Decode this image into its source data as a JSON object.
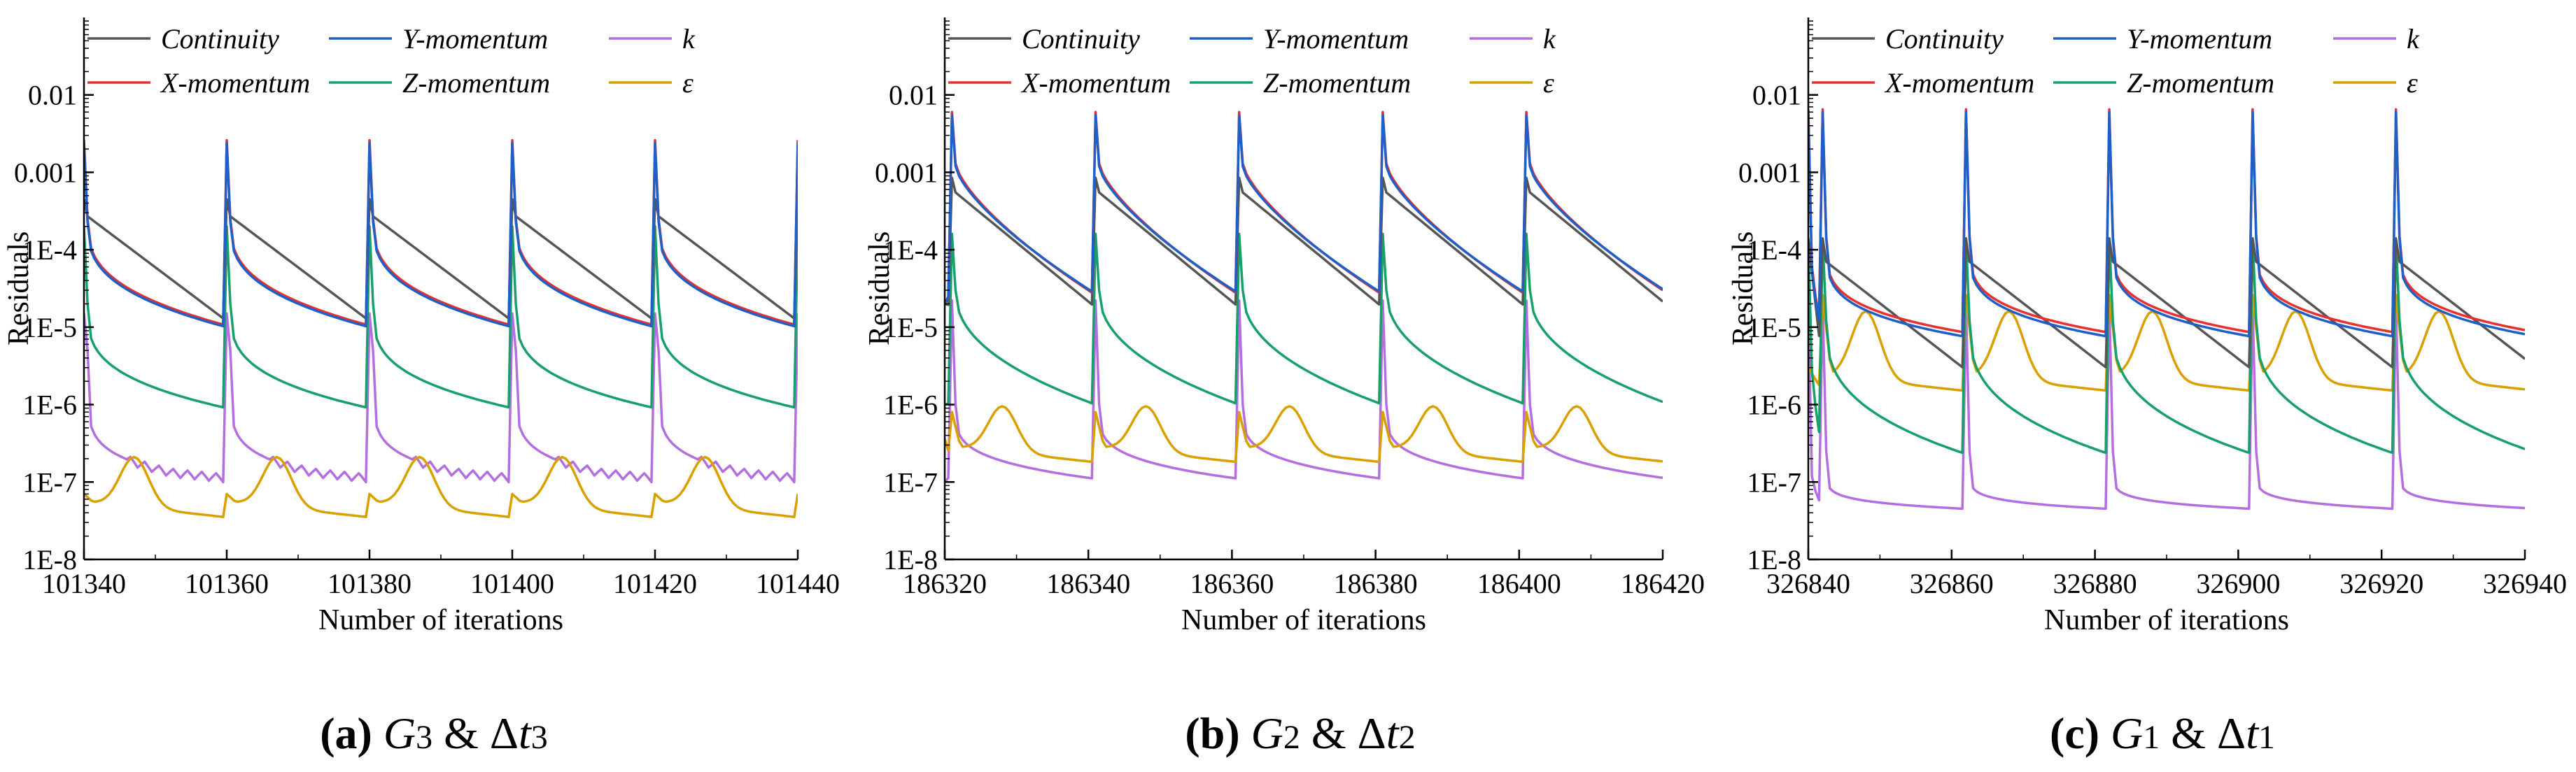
{
  "chart_data": [
    {
      "type": "line",
      "panel": "a",
      "caption": {
        "letter": "(a)",
        "grid": "G",
        "grid_sub": "3",
        "amp": "&",
        "delta": "Δ",
        "step": "t",
        "step_sub": "3"
      },
      "xlabel": "Number of iterations",
      "ylabel": "Residuals",
      "xlim": [
        101340,
        101440
      ],
      "ylim": [
        1e-08,
        0.1
      ],
      "xticks": [
        101340,
        101360,
        101380,
        101400,
        101420,
        101440
      ],
      "yticks": [
        {
          "value": 1e-08,
          "label": "1E-8"
        },
        {
          "value": 1e-07,
          "label": "1E-7"
        },
        {
          "value": 1e-06,
          "label": "1E-6"
        },
        {
          "value": 1e-05,
          "label": "1E-5"
        },
        {
          "value": 0.0001,
          "label": "1E-4"
        },
        {
          "value": 0.001,
          "label": "0.001"
        },
        {
          "value": 0.01,
          "label": "0.01"
        }
      ],
      "grid": false,
      "legend_position": "top",
      "cycle": {
        "start": 101340,
        "period": 20
      },
      "series": [
        {
          "name": "Continuity",
          "color": "#555555",
          "start": 0.00024,
          "end": 1.2e-05,
          "peak": 0.00045,
          "after_peak": 0.00027,
          "decay_shape": 1.0
        },
        {
          "name": "X-momentum",
          "color": "#e8312e",
          "start": 0.0008,
          "end": 1.05e-05,
          "peak": 0.0026,
          "after_peak": 0.00025,
          "decay_shape": 0.35
        },
        {
          "name": "Y-momentum",
          "color": "#1f5fc8",
          "start": 0.00075,
          "end": 1e-05,
          "peak": 0.0024,
          "after_peak": 0.00023,
          "decay_shape": 0.35
        },
        {
          "name": "Z-momentum",
          "color": "#17a06a",
          "start": 8e-05,
          "end": 9e-07,
          "peak": 0.0002,
          "after_peak": 2e-05,
          "decay_shape": 0.3
        },
        {
          "name": "k",
          "color": "#b56ee0",
          "start": 5e-06,
          "end": 1e-07,
          "peak": 1.5e-05,
          "after_peak": 5e-06,
          "plateau": 1.6e-07,
          "decay_shape": 0.15,
          "oscillation": 0.12
        },
        {
          "name": "ε",
          "color": "#d9a000",
          "bumpy": true,
          "base": 3.5e-08,
          "hump": 2.1e-07,
          "hump_pos": 0.35
        }
      ]
    },
    {
      "type": "line",
      "panel": "b",
      "caption": {
        "letter": "(b)",
        "grid": "G",
        "grid_sub": "2",
        "amp": "&",
        "delta": "Δ",
        "step": "t",
        "step_sub": "2"
      },
      "xlabel": "Number of iterations",
      "ylabel": "Residuals",
      "xlim": [
        186320,
        186420
      ],
      "ylim": [
        1e-08,
        0.1
      ],
      "xticks": [
        186320,
        186340,
        186360,
        186380,
        186400,
        186420
      ],
      "yticks": [
        {
          "value": 1e-08,
          "label": "1E-8"
        },
        {
          "value": 1e-07,
          "label": "1E-7"
        },
        {
          "value": 1e-06,
          "label": "1E-6"
        },
        {
          "value": 1e-05,
          "label": "1E-5"
        },
        {
          "value": 0.0001,
          "label": "1E-4"
        },
        {
          "value": 0.001,
          "label": "0.001"
        },
        {
          "value": 0.01,
          "label": "0.01"
        }
      ],
      "grid": false,
      "legend_position": "top",
      "cycle": {
        "start": 186321,
        "period": 20
      },
      "series": [
        {
          "name": "Continuity",
          "color": "#555555",
          "start": 2e-05,
          "end": 1.8e-05,
          "peak": 0.00085,
          "after_peak": 0.00055,
          "decay_shape": 1.0
        },
        {
          "name": "X-momentum",
          "color": "#e8312e",
          "start": 2e-05,
          "end": 2.6e-05,
          "peak": 0.006,
          "after_peak": 0.0013,
          "decay_shape": 0.7
        },
        {
          "name": "Y-momentum",
          "color": "#1f5fc8",
          "start": 2e-05,
          "end": 2.7e-05,
          "peak": 0.0055,
          "after_peak": 0.0012,
          "decay_shape": 0.7
        },
        {
          "name": "Z-momentum",
          "color": "#17a06a",
          "start": 1e-06,
          "end": 1e-06,
          "peak": 0.00016,
          "after_peak": 3e-05,
          "decay_shape": 0.45
        },
        {
          "name": "k",
          "color": "#b56ee0",
          "start": 1e-07,
          "end": 1.1e-07,
          "peak": 2.2e-05,
          "after_peak": 1e-06,
          "decay_shape": 0.25
        },
        {
          "name": "ε",
          "color": "#d9a000",
          "bumpy": true,
          "base": 1.8e-07,
          "hump": 9.5e-07,
          "hump_pos": 0.35,
          "spike": 8e-07
        }
      ]
    },
    {
      "type": "line",
      "panel": "c",
      "caption": {
        "letter": "(c)",
        "grid": "G",
        "grid_sub": "1",
        "amp": "&",
        "delta": "Δ",
        "step": "t",
        "step_sub": "1"
      },
      "xlabel": "Number of iterations",
      "ylabel": "Residuals",
      "xlim": [
        326840,
        326940
      ],
      "ylim": [
        1e-08,
        0.1
      ],
      "xticks": [
        326840,
        326860,
        326880,
        326900,
        326920,
        326940
      ],
      "yticks": [
        {
          "value": 1e-08,
          "label": "1E-8"
        },
        {
          "value": 1e-07,
          "label": "1E-7"
        },
        {
          "value": 1e-06,
          "label": "1E-6"
        },
        {
          "value": 1e-05,
          "label": "1E-5"
        },
        {
          "value": 0.0001,
          "label": "1E-4"
        },
        {
          "value": 0.001,
          "label": "0.001"
        },
        {
          "value": 0.01,
          "label": "0.01"
        }
      ],
      "grid": false,
      "legend_position": "top",
      "cycle": {
        "start": 326842,
        "period": 20
      },
      "series": [
        {
          "name": "Continuity",
          "color": "#555555",
          "start": 0.00014,
          "end": 2.8e-06,
          "peak": 0.00014,
          "after_peak": 7e-05,
          "decay_shape": 1.0
        },
        {
          "name": "X-momentum",
          "color": "#e8312e",
          "start": 0.0065,
          "end": 8.5e-06,
          "peak": 0.0065,
          "after_peak": 0.00015,
          "decay_shape": 0.25
        },
        {
          "name": "Y-momentum",
          "color": "#1f5fc8",
          "start": 0.006,
          "end": 7.5e-06,
          "peak": 0.006,
          "after_peak": 0.00014,
          "decay_shape": 0.25
        },
        {
          "name": "Z-momentum",
          "color": "#17a06a",
          "start": 0.00014,
          "end": 2.3e-07,
          "peak": 0.00014,
          "after_peak": 1.2e-05,
          "decay_shape": 0.35
        },
        {
          "name": "k",
          "color": "#b56ee0",
          "start": 2e-05,
          "end": 4.5e-08,
          "peak": 2e-05,
          "after_peak": 2.5e-07,
          "decay_shape": 0.12
        },
        {
          "name": "ε",
          "color": "#d9a000",
          "bumpy": true,
          "base": 1.5e-06,
          "hump": 1.6e-05,
          "hump_pos": 0.3,
          "spike": 2.6e-05
        }
      ]
    }
  ]
}
